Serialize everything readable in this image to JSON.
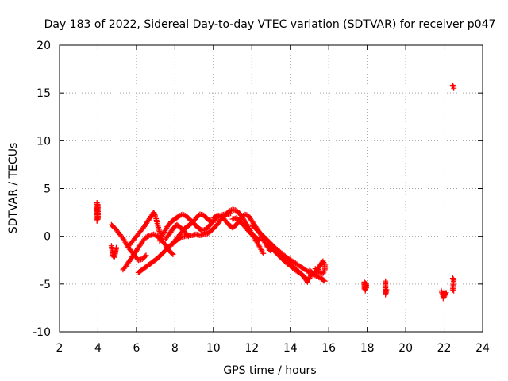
{
  "chart_data": {
    "type": "scatter",
    "title": "Day 183 of 2022, Sidereal Day-to-day VTEC variation (SDTVAR) for receiver p047",
    "xlabel": "GPS time / hours",
    "ylabel": "SDTVAR / TECUs",
    "xlim": [
      2,
      24
    ],
    "ylim": [
      -10,
      20
    ],
    "xticks": [
      2,
      4,
      6,
      8,
      10,
      12,
      14,
      16,
      18,
      20,
      22,
      24
    ],
    "yticks": [
      -10,
      -5,
      0,
      5,
      10,
      15,
      20
    ],
    "grid": true,
    "marker": "+",
    "color": "#ff0000",
    "series": [
      {
        "name": "SDTVAR",
        "segments": [
          [
            [
              3.95,
              1.6
            ],
            [
              3.95,
              2.0
            ],
            [
              3.95,
              2.4
            ],
            [
              3.95,
              2.8
            ],
            [
              3.95,
              3.2
            ],
            [
              3.95,
              3.5
            ],
            [
              4.0,
              1.8
            ],
            [
              4.0,
              2.6
            ],
            [
              4.0,
              3.3
            ]
          ],
          [
            [
              4.7,
              1.2
            ],
            [
              4.9,
              0.8
            ],
            [
              5.1,
              0.3
            ],
            [
              5.3,
              -0.2
            ],
            [
              5.5,
              -0.9
            ],
            [
              5.7,
              -1.5
            ],
            [
              5.9,
              -2.0
            ],
            [
              6.1,
              -2.5
            ],
            [
              6.3,
              -2.4
            ],
            [
              6.5,
              -2.0
            ]
          ],
          [
            [
              4.7,
              -1.0
            ],
            [
              4.75,
              -1.6
            ],
            [
              4.8,
              -2.1
            ],
            [
              4.85,
              -2.2
            ],
            [
              4.9,
              -1.7
            ],
            [
              4.95,
              -1.2
            ]
          ],
          [
            [
              5.3,
              -3.5
            ],
            [
              5.5,
              -3.0
            ],
            [
              5.7,
              -2.4
            ],
            [
              5.9,
              -1.8
            ],
            [
              6.1,
              -1.2
            ],
            [
              6.3,
              -0.6
            ],
            [
              6.5,
              -0.1
            ],
            [
              6.7,
              0.1
            ],
            [
              6.9,
              0.2
            ],
            [
              7.1,
              0.0
            ],
            [
              7.3,
              -0.4
            ],
            [
              7.5,
              -0.9
            ],
            [
              7.7,
              -1.5
            ],
            [
              7.9,
              -1.9
            ]
          ],
          [
            [
              5.6,
              -1.0
            ],
            [
              5.8,
              -0.5
            ],
            [
              6.0,
              0.0
            ],
            [
              6.2,
              0.5
            ],
            [
              6.4,
              1.0
            ],
            [
              6.6,
              1.6
            ],
            [
              6.8,
              2.2
            ],
            [
              6.9,
              2.5
            ],
            [
              7.0,
              2.0
            ],
            [
              7.1,
              1.2
            ],
            [
              7.2,
              0.5
            ],
            [
              7.3,
              0.0
            ]
          ],
          [
            [
              6.1,
              -3.8
            ],
            [
              6.3,
              -3.5
            ],
            [
              6.5,
              -3.2
            ],
            [
              6.7,
              -2.9
            ],
            [
              6.9,
              -2.6
            ],
            [
              7.1,
              -2.3
            ],
            [
              7.3,
              -1.9
            ],
            [
              7.5,
              -1.5
            ],
            [
              7.7,
              -1.1
            ],
            [
              7.9,
              -0.7
            ],
            [
              8.1,
              -0.4
            ],
            [
              8.3,
              -0.1
            ],
            [
              8.5,
              0.0
            ],
            [
              8.7,
              0.1
            ],
            [
              8.9,
              0.1
            ],
            [
              9.1,
              0.2
            ],
            [
              9.3,
              0.1
            ],
            [
              9.5,
              0.2
            ],
            [
              9.7,
              0.3
            ],
            [
              9.9,
              0.6
            ],
            [
              10.1,
              1.0
            ],
            [
              10.3,
              1.5
            ],
            [
              10.5,
              2.0
            ],
            [
              10.7,
              2.3
            ],
            [
              10.9,
              2.4
            ]
          ],
          [
            [
              7.2,
              -0.5
            ],
            [
              7.4,
              0.3
            ],
            [
              7.6,
              1.0
            ],
            [
              7.8,
              1.5
            ],
            [
              8.0,
              1.8
            ],
            [
              8.2,
              2.1
            ],
            [
              8.4,
              2.3
            ],
            [
              8.6,
              2.1
            ],
            [
              8.8,
              1.7
            ],
            [
              9.0,
              1.3
            ],
            [
              9.2,
              0.9
            ],
            [
              9.4,
              0.6
            ],
            [
              9.6,
              0.7
            ],
            [
              9.8,
              1.1
            ],
            [
              10.0,
              1.6
            ],
            [
              10.2,
              2.0
            ],
            [
              10.4,
              2.2
            ],
            [
              10.6,
              2.3
            ]
          ],
          [
            [
              7.5,
              -0.3
            ],
            [
              7.7,
              0.2
            ],
            [
              7.9,
              0.8
            ],
            [
              8.1,
              1.2
            ],
            [
              8.3,
              0.9
            ],
            [
              8.5,
              0.5
            ],
            [
              8.7,
              0.0
            ]
          ],
          [
            [
              7.9,
              -0.8
            ],
            [
              8.1,
              -0.2
            ],
            [
              8.3,
              0.3
            ],
            [
              8.5,
              0.8
            ],
            [
              8.7,
              1.1
            ],
            [
              8.9,
              1.4
            ],
            [
              9.1,
              1.9
            ],
            [
              9.3,
              2.3
            ],
            [
              9.5,
              2.2
            ],
            [
              9.7,
              1.8
            ],
            [
              9.9,
              1.5
            ],
            [
              10.1,
              1.7
            ]
          ],
          [
            [
              10.0,
              1.9
            ],
            [
              10.2,
              2.2
            ],
            [
              10.4,
              2.1
            ],
            [
              10.6,
              1.7
            ],
            [
              10.8,
              1.2
            ],
            [
              11.0,
              0.9
            ],
            [
              11.2,
              1.2
            ],
            [
              11.4,
              1.8
            ],
            [
              11.6,
              2.3
            ],
            [
              11.8,
              2.2
            ],
            [
              12.0,
              1.6
            ],
            [
              12.2,
              1.0
            ],
            [
              12.4,
              0.4
            ],
            [
              12.6,
              -0.4
            ],
            [
              12.8,
              -1.1
            ],
            [
              13.0,
              -1.6
            ]
          ],
          [
            [
              10.6,
              2.2
            ],
            [
              10.8,
              2.6
            ],
            [
              11.0,
              2.8
            ],
            [
              11.2,
              2.7
            ],
            [
              11.4,
              2.3
            ],
            [
              11.6,
              1.7
            ],
            [
              11.8,
              1.0
            ],
            [
              12.0,
              0.3
            ],
            [
              12.2,
              -0.4
            ],
            [
              12.4,
              -1.1
            ],
            [
              12.6,
              -1.8
            ]
          ],
          [
            [
              11.0,
              1.8
            ],
            [
              11.2,
              1.9
            ],
            [
              11.4,
              1.5
            ],
            [
              11.6,
              1.1
            ],
            [
              11.8,
              0.6
            ],
            [
              12.0,
              0.2
            ],
            [
              12.2,
              -0.1
            ],
            [
              12.4,
              -0.4
            ]
          ],
          [
            [
              12.0,
              1.2
            ],
            [
              12.3,
              0.6
            ],
            [
              12.6,
              0.0
            ],
            [
              12.9,
              -0.6
            ],
            [
              13.2,
              -1.2
            ],
            [
              13.5,
              -1.7
            ],
            [
              13.8,
              -2.2
            ],
            [
              14.1,
              -2.6
            ],
            [
              14.4,
              -3.0
            ],
            [
              14.7,
              -3.4
            ],
            [
              15.0,
              -3.8
            ],
            [
              15.3,
              -4.1
            ],
            [
              15.6,
              -4.4
            ],
            [
              15.8,
              -4.7
            ]
          ],
          [
            [
              12.8,
              -0.8
            ],
            [
              13.1,
              -1.4
            ],
            [
              13.4,
              -2.0
            ],
            [
              13.7,
              -2.6
            ],
            [
              14.0,
              -3.1
            ],
            [
              14.3,
              -3.6
            ],
            [
              14.6,
              -4.0
            ],
            [
              14.8,
              -4.5
            ],
            [
              14.9,
              -4.8
            ]
          ],
          [
            [
              13.3,
              -1.6
            ],
            [
              13.6,
              -2.1
            ],
            [
              13.9,
              -2.7
            ],
            [
              14.2,
              -3.3
            ],
            [
              14.5,
              -3.8
            ],
            [
              14.7,
              -4.2
            ],
            [
              14.9,
              -4.6
            ],
            [
              15.0,
              -4.4
            ],
            [
              15.1,
              -4.0
            ]
          ],
          [
            [
              15.0,
              -3.6
            ],
            [
              15.2,
              -3.9
            ],
            [
              15.4,
              -3.6
            ],
            [
              15.5,
              -3.2
            ],
            [
              15.6,
              -2.9
            ],
            [
              15.7,
              -2.6
            ],
            [
              15.8,
              -3.0
            ],
            [
              15.8,
              -3.5
            ],
            [
              15.7,
              -3.9
            ],
            [
              15.5,
              -3.8
            ],
            [
              15.3,
              -3.4
            ]
          ],
          [
            [
              17.85,
              -4.8
            ],
            [
              17.85,
              -5.2
            ],
            [
              17.85,
              -5.5
            ],
            [
              17.9,
              -4.9
            ],
            [
              17.9,
              -5.3
            ],
            [
              17.9,
              -5.7
            ],
            [
              17.95,
              -5.0
            ],
            [
              17.95,
              -5.4
            ]
          ],
          [
            [
              18.95,
              -4.7
            ],
            [
              18.95,
              -5.1
            ],
            [
              18.95,
              -5.4
            ],
            [
              18.95,
              -5.8
            ],
            [
              18.95,
              -6.1
            ],
            [
              19.0,
              -5.6
            ]
          ],
          [
            [
              21.85,
              -5.7
            ],
            [
              21.9,
              -6.0
            ],
            [
              21.95,
              -6.3
            ],
            [
              22.0,
              -5.8
            ],
            [
              22.05,
              -6.1
            ],
            [
              22.1,
              -5.9
            ],
            [
              21.95,
              -6.5
            ]
          ],
          [
            [
              22.45,
              -4.4
            ],
            [
              22.5,
              -4.6
            ],
            [
              22.45,
              -5.6
            ],
            [
              22.5,
              -5.7
            ]
          ],
          [
            [
              22.45,
              15.8
            ],
            [
              22.5,
              15.5
            ]
          ]
        ]
      }
    ]
  }
}
